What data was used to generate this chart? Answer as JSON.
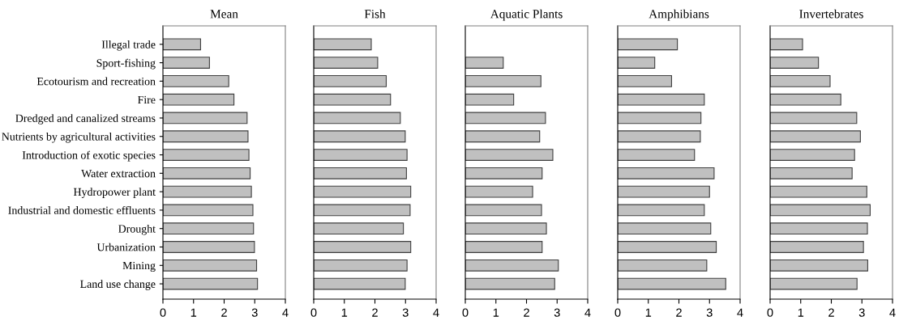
{
  "chart_data": [
    {
      "type": "bar",
      "orientation": "horizontal",
      "title": "Mean",
      "categories": [
        "Illegal trade",
        "Sport-fishing",
        "Ecotourism and recreation",
        "Fire",
        "Dredged and canalized streams",
        "Nutrients by agricultural activities",
        "Introduction of exotic species",
        "Water extraction",
        "Hydropower plant",
        "Industrial and domestic effluents",
        "Drought",
        "Urbanization",
        "Mining",
        "Land use change"
      ],
      "values": [
        1.23,
        1.52,
        2.15,
        2.32,
        2.75,
        2.78,
        2.81,
        2.85,
        2.89,
        2.94,
        2.96,
        2.99,
        3.06,
        3.09
      ],
      "color": "#c0c0c0",
      "xlim": [
        0,
        4
      ],
      "xticks": [
        0,
        1,
        2,
        3,
        4
      ],
      "grid": false,
      "legend": false
    },
    {
      "type": "bar",
      "orientation": "horizontal",
      "title": "Fish",
      "categories": [
        null,
        null,
        null,
        null,
        null,
        null,
        null,
        null,
        null,
        null,
        null,
        null,
        null,
        null
      ],
      "values": [
        1.88,
        2.09,
        2.37,
        2.51,
        2.83,
        2.99,
        3.05,
        3.03,
        3.17,
        3.15,
        2.93,
        3.17,
        3.05,
        2.99
      ],
      "color": "#c0c0c0",
      "xlim": [
        0,
        4
      ],
      "xticks": [
        0,
        1,
        2,
        3,
        4
      ],
      "tick_labels": "x",
      "grid": false,
      "legend": false
    },
    {
      "type": "bar",
      "orientation": "horizontal",
      "title": "Aquatic Plants",
      "categories": [
        null,
        null,
        null,
        null,
        null,
        null,
        null,
        null,
        null,
        null,
        null,
        null,
        null,
        null
      ],
      "values": [
        null,
        1.24,
        2.47,
        1.58,
        2.62,
        2.43,
        2.86,
        2.51,
        2.2,
        2.49,
        2.65,
        2.51,
        3.04,
        2.92
      ],
      "color": "#c0c0c0",
      "xlim": [
        0,
        4
      ],
      "xticks": [
        0,
        1,
        2,
        3,
        4
      ],
      "tick_labels": "x",
      "grid": false,
      "legend": false
    },
    {
      "type": "bar",
      "orientation": "horizontal",
      "title": "Amphibians",
      "categories": [
        null,
        null,
        null,
        null,
        null,
        null,
        null,
        null,
        null,
        null,
        null,
        null,
        null,
        null
      ],
      "values": [
        1.95,
        1.21,
        1.76,
        2.83,
        2.72,
        2.7,
        2.51,
        3.15,
        3.0,
        2.83,
        3.04,
        3.22,
        2.91,
        3.53
      ],
      "color": "#c0c0c0",
      "xlim": [
        0,
        4
      ],
      "xticks": [
        0,
        1,
        2,
        3,
        4
      ],
      "tick_labels": "x",
      "grid": false,
      "legend": false
    },
    {
      "type": "bar",
      "orientation": "horizontal",
      "title": "Invertebrates",
      "categories": [
        null,
        null,
        null,
        null,
        null,
        null,
        null,
        null,
        null,
        null,
        null,
        null,
        null,
        null
      ],
      "values": [
        1.06,
        1.58,
        1.96,
        2.31,
        2.83,
        2.95,
        2.76,
        2.68,
        3.16,
        3.27,
        3.18,
        3.05,
        3.19,
        2.84
      ],
      "color": "#c0c0c0",
      "xlim": [
        0,
        4
      ],
      "xticks": [
        0,
        1,
        2,
        3,
        4
      ],
      "tick_labels": "x",
      "grid": false,
      "legend": false
    }
  ]
}
